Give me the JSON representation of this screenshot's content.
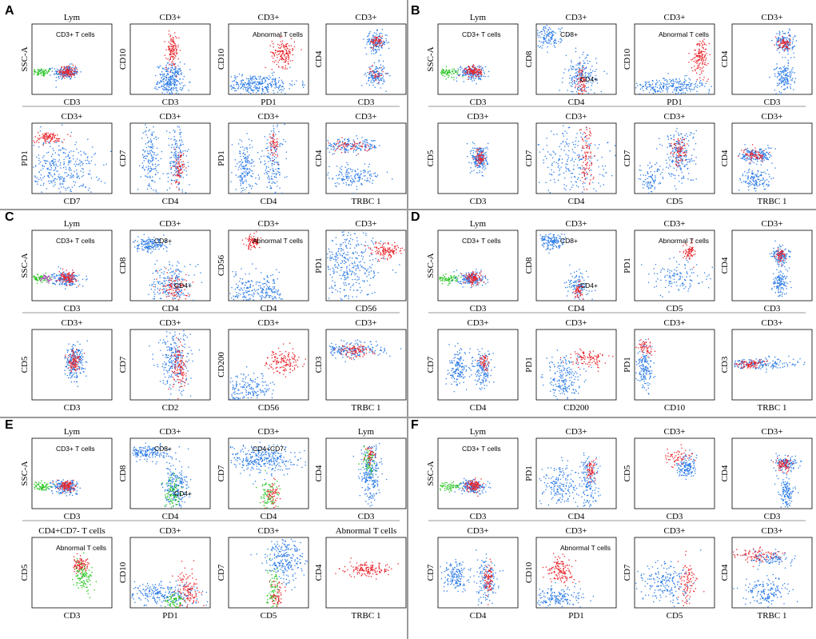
{
  "colors": {
    "population_main": "#2b7be6",
    "population_abnormal": "#e8262d",
    "population_lymph_other": "#22c41b",
    "population_extra": "#c64bd1",
    "frame": "#000000",
    "gate_line": "#8c8c8c",
    "panel_divider": "#9a9a9a"
  },
  "chart_data": [
    {
      "panel": "A",
      "plots": [
        {
          "type": "scatter",
          "title": "Lym",
          "xlabel": "CD3",
          "ylabel": "SSC-A",
          "gates": [
            "CD3+ T cells"
          ]
        },
        {
          "type": "scatter",
          "title": "CD3+",
          "xlabel": "CD3",
          "ylabel": "CD10",
          "gates": []
        },
        {
          "type": "scatter",
          "title": "CD3+",
          "xlabel": "PD1",
          "ylabel": "CD10",
          "gates": [
            "Abnormal T cells"
          ]
        },
        {
          "type": "scatter",
          "title": "CD3+",
          "xlabel": "CD3",
          "ylabel": "CD4",
          "gates": []
        },
        {
          "type": "scatter",
          "title": "CD3+",
          "xlabel": "CD7",
          "ylabel": "PD1",
          "gates": []
        },
        {
          "type": "scatter",
          "title": "CD3+",
          "xlabel": "CD4",
          "ylabel": "CD7",
          "gates": []
        },
        {
          "type": "scatter",
          "title": "CD3+",
          "xlabel": "CD4",
          "ylabel": "PD1",
          "gates": []
        },
        {
          "type": "scatter",
          "title": "CD3+",
          "xlabel": "TRBC 1",
          "ylabel": "CD4",
          "gates": []
        }
      ]
    },
    {
      "panel": "B",
      "plots": [
        {
          "type": "scatter",
          "title": "Lym",
          "xlabel": "CD3",
          "ylabel": "SSC-A",
          "gates": [
            "CD3+ T cells"
          ]
        },
        {
          "type": "scatter",
          "title": "CD3+",
          "xlabel": "CD4",
          "ylabel": "CD8",
          "gates": [
            "CD8+",
            "CD4+"
          ]
        },
        {
          "type": "scatter",
          "title": "CD3+",
          "xlabel": "PD1",
          "ylabel": "CD10",
          "gates": [
            "Abnormal T cells"
          ]
        },
        {
          "type": "scatter",
          "title": "CD3+",
          "xlabel": "CD3",
          "ylabel": "CD4",
          "gates": []
        },
        {
          "type": "scatter",
          "title": "CD3+",
          "xlabel": "CD3",
          "ylabel": "CD5",
          "gates": []
        },
        {
          "type": "scatter",
          "title": "CD3+",
          "xlabel": "CD4",
          "ylabel": "CD7",
          "gates": []
        },
        {
          "type": "scatter",
          "title": "CD3+",
          "xlabel": "CD5",
          "ylabel": "CD7",
          "gates": []
        },
        {
          "type": "scatter",
          "title": "CD3+",
          "xlabel": "TRBC 1",
          "ylabel": "CD4",
          "gates": []
        }
      ]
    },
    {
      "panel": "C",
      "plots": [
        {
          "type": "scatter",
          "title": "Lym",
          "xlabel": "CD3",
          "ylabel": "SSC-A",
          "gates": [
            "CD3+ T cells"
          ]
        },
        {
          "type": "scatter",
          "title": "CD3+",
          "xlabel": "CD4",
          "ylabel": "CD8",
          "gates": [
            "CD8+",
            "CD4+"
          ]
        },
        {
          "type": "scatter",
          "title": "CD3+",
          "xlabel": "CD4",
          "ylabel": "CD56",
          "gates": [
            "Abnormal T cells"
          ]
        },
        {
          "type": "scatter",
          "title": "CD3+",
          "xlabel": "CD56",
          "ylabel": "PD1",
          "gates": []
        },
        {
          "type": "scatter",
          "title": "CD3+",
          "xlabel": "CD3",
          "ylabel": "CD5",
          "gates": []
        },
        {
          "type": "scatter",
          "title": "CD3+",
          "xlabel": "CD2",
          "ylabel": "CD7",
          "gates": []
        },
        {
          "type": "scatter",
          "title": "CD3+",
          "xlabel": "CD56",
          "ylabel": "CD200",
          "gates": []
        },
        {
          "type": "scatter",
          "title": "CD3+",
          "xlabel": "TRBC 1",
          "ylabel": "CD3",
          "gates": []
        }
      ]
    },
    {
      "panel": "D",
      "plots": [
        {
          "type": "scatter",
          "title": "Lym",
          "xlabel": "CD3",
          "ylabel": "SSC-A",
          "gates": [
            "CD3+ T cells"
          ]
        },
        {
          "type": "scatter",
          "title": "CD3+",
          "xlabel": "CD4",
          "ylabel": "CD8",
          "gates": [
            "CD8+",
            "CD4+"
          ]
        },
        {
          "type": "scatter",
          "title": "CD3+",
          "xlabel": "CD5",
          "ylabel": "PD1",
          "gates": [
            "Abnormal T cells"
          ]
        },
        {
          "type": "scatter",
          "title": "CD3+",
          "xlabel": "CD3",
          "ylabel": "CD4",
          "gates": []
        },
        {
          "type": "scatter",
          "title": "CD3+",
          "xlabel": "CD4",
          "ylabel": "CD7",
          "gates": []
        },
        {
          "type": "scatter",
          "title": "CD3+",
          "xlabel": "CD200",
          "ylabel": "PD1",
          "gates": []
        },
        {
          "type": "scatter",
          "title": "CD3+",
          "xlabel": "CD10",
          "ylabel": "PD1",
          "gates": []
        },
        {
          "type": "scatter",
          "title": "CD3+",
          "xlabel": "TRBC 1",
          "ylabel": "CD3",
          "gates": []
        }
      ]
    },
    {
      "panel": "E",
      "plots": [
        {
          "type": "scatter",
          "title": "Lym",
          "xlabel": "CD3",
          "ylabel": "SSC-A",
          "gates": [
            "CD3+ T cells"
          ]
        },
        {
          "type": "scatter",
          "title": "CD3+",
          "xlabel": "CD4",
          "ylabel": "CD8",
          "gates": [
            "CD8+",
            "CD4+"
          ]
        },
        {
          "type": "scatter",
          "title": "CD3+",
          "xlabel": "CD4",
          "ylabel": "CD7",
          "gates": [
            "CD4+CD7-"
          ]
        },
        {
          "type": "scatter",
          "title": "Lym",
          "xlabel": "CD3",
          "ylabel": "CD4",
          "gates": []
        },
        {
          "type": "scatter",
          "title": "CD4+CD7- T cells",
          "xlabel": "CD3",
          "ylabel": "CD5",
          "gates": [
            "Abnormal T cells"
          ]
        },
        {
          "type": "scatter",
          "title": "CD3+",
          "xlabel": "PD1",
          "ylabel": "CD10",
          "gates": []
        },
        {
          "type": "scatter",
          "title": "CD3+",
          "xlabel": "CD5",
          "ylabel": "CD7",
          "gates": []
        },
        {
          "type": "scatter",
          "title": "Abnormal T cells",
          "xlabel": "TRBC 1",
          "ylabel": "CD4",
          "gates": []
        }
      ]
    },
    {
      "panel": "F",
      "plots": [
        {
          "type": "scatter",
          "title": "Lym",
          "xlabel": "CD3",
          "ylabel": "SSC-A",
          "gates": [
            "CD3+ T cells"
          ]
        },
        {
          "type": "scatter",
          "title": "CD3+",
          "xlabel": "CD4",
          "ylabel": "PD1",
          "gates": []
        },
        {
          "type": "scatter",
          "title": "CD3+",
          "xlabel": "CD3",
          "ylabel": "CD5",
          "gates": []
        },
        {
          "type": "scatter",
          "title": "CD3+",
          "xlabel": "CD3",
          "ylabel": "CD4",
          "gates": []
        },
        {
          "type": "scatter",
          "title": "CD3+",
          "xlabel": "CD4",
          "ylabel": "CD7",
          "gates": []
        },
        {
          "type": "scatter",
          "title": "CD3+",
          "xlabel": "PD1",
          "ylabel": "CD10",
          "gates": [
            "Abnormal T cells"
          ]
        },
        {
          "type": "scatter",
          "title": "CD3+",
          "xlabel": "CD5",
          "ylabel": "CD7",
          "gates": []
        },
        {
          "type": "scatter",
          "title": "CD3+",
          "xlabel": "TRBC 1",
          "ylabel": "CD4",
          "gates": []
        }
      ]
    }
  ]
}
